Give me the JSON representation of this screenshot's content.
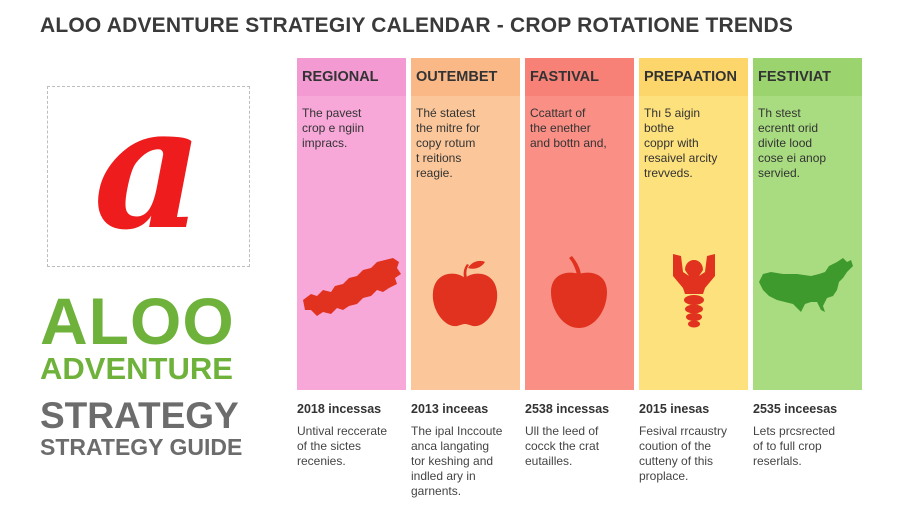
{
  "page": {
    "title": "ALOO ADVENTURE STRATEGIY CALENDAR - CROP ROTATIONE TRENDS"
  },
  "logo": {
    "letter": "a",
    "color": "#ee1c1c"
  },
  "brand": {
    "line1": "ALOO",
    "line2": "ADVENTURE",
    "line3": "STRATEGY",
    "line4": "STRATEGY GUIDE",
    "green": "#6fb23b",
    "gray": "#6c6c6c"
  },
  "columns": [
    {
      "header": "REGIONAL",
      "text": "The pavest\ncrop e ngiin\nimpracs.",
      "icon": "map-region-icon",
      "bg": "#f7a8d9",
      "head_bg": "#f39ad3",
      "stat": "2018 incessas",
      "note": "Untival reccerate\nof the sictes\nrecenies."
    },
    {
      "header": "OUTEMBET",
      "text": "Thé statest\nthe mitre for\ncopy rotum\nt reitions\nreagie.",
      "icon": "apple-icon",
      "bg": "#fbc79a",
      "head_bg": "#f9b886",
      "stat": "2013 inceeas",
      "note": "The ipal Inccoute\nanca langating\ntor keshing and\nindled ary in\ngarnents."
    },
    {
      "header": "FASTIVAL",
      "text": "Ccattart of\nthe enether\nand bottn and,",
      "icon": "fruit-icon",
      "bg": "#f98f85",
      "head_bg": "#f78177",
      "stat": "2538 incessas",
      "note": "Ull the leed of\ncocck the crat\neutailles."
    },
    {
      "header": "PREPAATION",
      "text": "Thı 5 aigin\nbothe\ncoppr with\nresaivel arcity\ntrevveds.",
      "icon": "figure-icon",
      "bg": "#fde17c",
      "head_bg": "#fcd66a",
      "stat": "2015 inesas",
      "note": "Fesival rrcaustry\ncoution of the\ncutteny of this\nproplace."
    },
    {
      "header": "FESTIVIAT",
      "text": "Th stest\necrentt orid\ndivite lood\ncose ei anop\nservied.",
      "icon": "usa-map-icon",
      "bg": "#a9dc80",
      "head_bg": "#9bd46f",
      "stat": "2535 inceesas",
      "note": "Lets prcsrected\nof to full crop\nreserlals."
    }
  ],
  "icon_color": "#e0321e"
}
